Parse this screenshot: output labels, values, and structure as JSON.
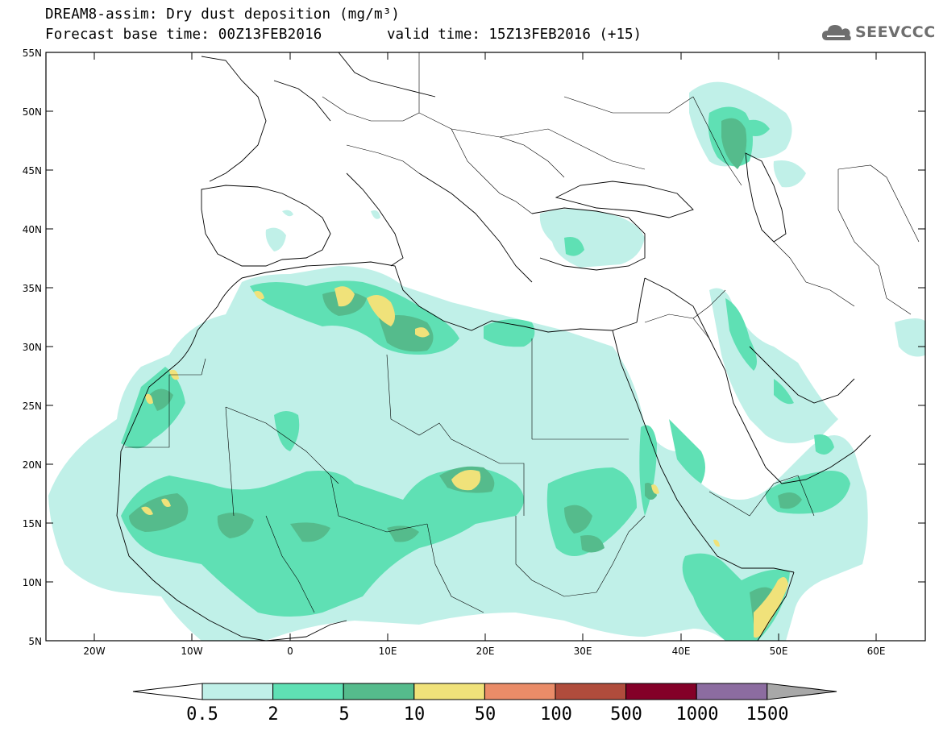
{
  "header": {
    "title_line1": "DREAM8-assim: Dry dust deposition (mg/m³)",
    "title_line2_left": "Forecast base time: 00Z13FEB2016",
    "title_line2_right": "valid time: 15Z13FEB2016 (+15)",
    "logo_text": "SEEVCCC",
    "logo_icon": "cloud-icon"
  },
  "map": {
    "region": "North Africa / Middle East / Europe",
    "projection": "lat-lon",
    "lon_range": [
      -25,
      65
    ],
    "lat_range": [
      5,
      55
    ],
    "lon_ticks": [
      "20W",
      "10W",
      "0",
      "10E",
      "20E",
      "30E",
      "40E",
      "50E",
      "60E"
    ],
    "lat_ticks": [
      "55N",
      "50N",
      "45N",
      "40N",
      "35N",
      "30N",
      "25N",
      "20N",
      "15N",
      "10N",
      "5N"
    ]
  },
  "colorbar": {
    "labels": [
      "0.5",
      "2",
      "5",
      "10",
      "50",
      "100",
      "500",
      "1000",
      "1500"
    ],
    "colors": [
      "#c0f0e8",
      "#5fe0b4",
      "#55bb8c",
      "#f0e27a",
      "#ea8c68",
      "#b04c3c",
      "#840028",
      "#8c6ca0"
    ],
    "under_color": "#ffffff",
    "over_color": "#a8a8a8"
  },
  "colors": {
    "level_05": "#c0f0e8",
    "level_2": "#5fe0b4",
    "level_5": "#55bb8c",
    "level_10": "#f0e27a"
  }
}
